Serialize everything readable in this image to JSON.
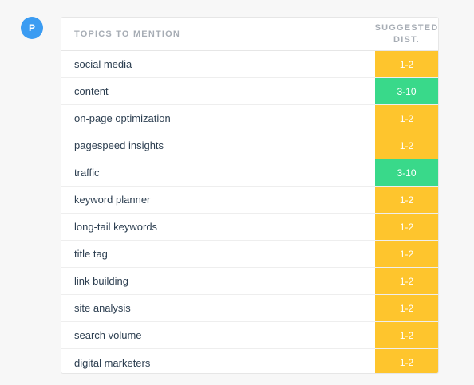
{
  "avatar": {
    "initial": "P",
    "color": "#3b9cf2"
  },
  "table": {
    "header_topic": "TOPICS TO MENTION",
    "header_dist_line1": "SUGGESTED",
    "header_dist_line2": "DIST.",
    "rows": [
      {
        "topic": "social media",
        "dist": "1-2",
        "level": "low"
      },
      {
        "topic": "content",
        "dist": "3-10",
        "level": "high"
      },
      {
        "topic": "on-page optimization",
        "dist": "1-2",
        "level": "low"
      },
      {
        "topic": "pagespeed insights",
        "dist": "1-2",
        "level": "low"
      },
      {
        "topic": "traffic",
        "dist": "3-10",
        "level": "high"
      },
      {
        "topic": "keyword planner",
        "dist": "1-2",
        "level": "low"
      },
      {
        "topic": "long-tail keywords",
        "dist": "1-2",
        "level": "low"
      },
      {
        "topic": "title tag",
        "dist": "1-2",
        "level": "low"
      },
      {
        "topic": "link building",
        "dist": "1-2",
        "level": "low"
      },
      {
        "topic": "site analysis",
        "dist": "1-2",
        "level": "low"
      },
      {
        "topic": "search volume",
        "dist": "1-2",
        "level": "low"
      },
      {
        "topic": "digital marketers",
        "dist": "1-2",
        "level": "low"
      }
    ]
  },
  "colors": {
    "low": "#fec52d",
    "high": "#39d98a",
    "text": "#2c3e50",
    "header": "#a7adb5"
  }
}
